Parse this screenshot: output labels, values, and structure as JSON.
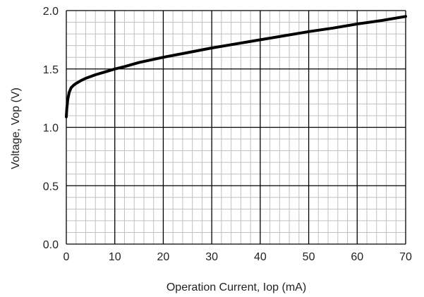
{
  "chart_data": {
    "type": "line",
    "title": "",
    "xlabel": "Operation Current, Iop (mA)",
    "ylabel": "Voltage, Vop (V)",
    "xlim": [
      0,
      70
    ],
    "ylim": [
      0.0,
      2.0
    ],
    "x_ticks": [
      0,
      10,
      20,
      30,
      40,
      50,
      60,
      70
    ],
    "x_tick_labels": [
      "0",
      "10",
      "20",
      "30",
      "40",
      "50",
      "60",
      "70"
    ],
    "y_ticks": [
      0.0,
      0.5,
      1.0,
      1.5,
      2.0
    ],
    "y_tick_labels": [
      "0.0",
      "0.5",
      "1.0",
      "1.5",
      "2.0"
    ],
    "grid": true,
    "minor_grid": true,
    "legend": "none",
    "colors": {
      "line": "#000000",
      "major_grid": "#000000",
      "minor_grid": "#c0c0c0"
    },
    "series": [
      {
        "x": [
          0.0,
          0.1,
          0.3,
          0.6,
          1.0,
          1.5,
          2,
          3,
          4,
          5,
          6,
          8,
          10,
          12,
          15,
          20,
          25,
          30,
          35,
          40,
          45,
          50,
          55,
          60,
          65,
          70
        ],
        "y": [
          1.09,
          1.16,
          1.24,
          1.3,
          1.34,
          1.36,
          1.375,
          1.4,
          1.42,
          1.435,
          1.45,
          1.475,
          1.5,
          1.52,
          1.555,
          1.6,
          1.64,
          1.68,
          1.715,
          1.75,
          1.785,
          1.82,
          1.85,
          1.885,
          1.915,
          1.95
        ]
      }
    ]
  }
}
